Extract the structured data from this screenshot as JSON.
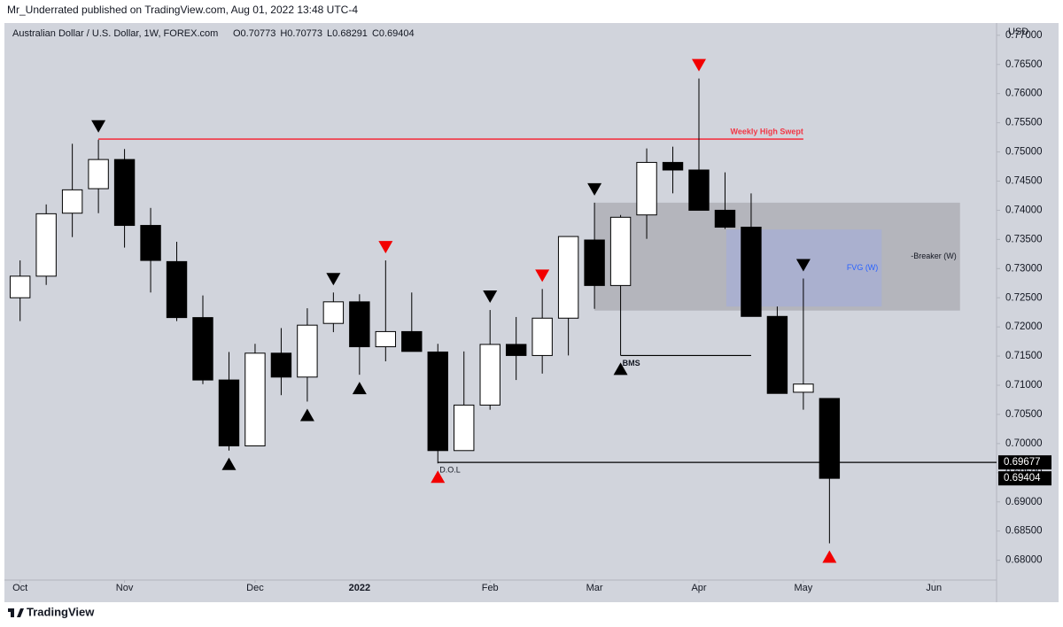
{
  "chart_data": {
    "type": "candlestick",
    "publisher": "Mr_Underrated published on TradingView.com, Aug 01, 2022 13:48 UTC-4",
    "title": "Australian Dollar / U.S. Dollar, 1W, FOREX.com",
    "ohlc_text": [
      "O0.70773",
      "H0.70773",
      "L0.68291",
      "C0.69404"
    ],
    "y_axis_label": "USD",
    "brand": "TradingView",
    "open": [
      0.725,
      0.7287,
      0.7395,
      0.7437,
      0.7487,
      0.7374,
      0.7312,
      0.7216,
      0.7109,
      0.6996,
      0.7155,
      0.7114,
      0.7206,
      0.7243,
      0.7166,
      0.7192,
      0.7157,
      0.6988,
      0.7066,
      0.717,
      0.7151,
      0.7215,
      0.7349,
      0.7271,
      0.7392,
      0.7482,
      0.7469,
      0.74,
      0.7371,
      0.7218,
      0.7088,
      0.70773
    ],
    "high": [
      0.7314,
      0.741,
      0.7514,
      0.7521,
      0.7505,
      0.7404,
      0.7346,
      0.7254,
      0.7157,
      0.7171,
      0.7198,
      0.7232,
      0.7259,
      0.7256,
      0.7314,
      0.7259,
      0.7171,
      0.7158,
      0.7229,
      0.7217,
      0.7265,
      0.7355,
      0.7413,
      0.7392,
      0.7506,
      0.7509,
      0.7626,
      0.7465,
      0.7429,
      0.7235,
      0.7283,
      0.70773
    ],
    "low": [
      0.721,
      0.7272,
      0.7354,
      0.7395,
      0.7336,
      0.7259,
      0.721,
      0.7102,
      0.6988,
      0.6996,
      0.7083,
      0.7072,
      0.7191,
      0.7118,
      0.7141,
      0.7158,
      0.6966,
      0.6988,
      0.7058,
      0.7109,
      0.712,
      0.7151,
      0.7231,
      0.7151,
      0.7351,
      0.7429,
      0.74,
      0.7368,
      0.7218,
      0.7086,
      0.7058,
      0.68291
    ],
    "close": [
      0.7287,
      0.7394,
      0.7435,
      0.7487,
      0.7374,
      0.7314,
      0.7216,
      0.7109,
      0.6996,
      0.7155,
      0.7114,
      0.7203,
      0.7243,
      0.7166,
      0.7192,
      0.7158,
      0.6988,
      0.7066,
      0.717,
      0.7151,
      0.7215,
      0.7355,
      0.7271,
      0.7388,
      0.7482,
      0.7469,
      0.74,
      0.7371,
      0.7218,
      0.7086,
      0.7102,
      0.69404
    ],
    "up_color": "#ffffff",
    "down_color": "#000000",
    "xlim": [
      -0.6,
      37.4
    ],
    "xticks": [
      {
        "value": 0,
        "label": "Oct"
      },
      {
        "value": 4,
        "label": "Nov"
      },
      {
        "value": 9,
        "label": "Dec"
      },
      {
        "value": 13,
        "label": "2022"
      },
      {
        "value": 18,
        "label": "Feb"
      },
      {
        "value": 22,
        "label": "Mar"
      },
      {
        "value": 26,
        "label": "Apr"
      },
      {
        "value": 30,
        "label": "May"
      },
      {
        "value": 35,
        "label": "Jun"
      }
    ],
    "ylim": [
      0.6766,
      0.7721
    ],
    "yticks": [
      {
        "value": 0.68,
        "label": "0.68000"
      },
      {
        "value": 0.685,
        "label": "0.68500"
      },
      {
        "value": 0.69,
        "label": "0.69000"
      },
      {
        "value": 0.695,
        "label": "0.69500"
      },
      {
        "value": 0.7,
        "label": "0.70000"
      },
      {
        "value": 0.705,
        "label": "0.70500"
      },
      {
        "value": 0.71,
        "label": "0.71000"
      },
      {
        "value": 0.715,
        "label": "0.71500"
      },
      {
        "value": 0.72,
        "label": "0.72000"
      },
      {
        "value": 0.725,
        "label": "0.72500"
      },
      {
        "value": 0.73,
        "label": "0.73000"
      },
      {
        "value": 0.735,
        "label": "0.73500"
      },
      {
        "value": 0.74,
        "label": "0.74000"
      },
      {
        "value": 0.745,
        "label": "0.74500"
      },
      {
        "value": 0.75,
        "label": "0.75000"
      },
      {
        "value": 0.755,
        "label": "0.75500"
      },
      {
        "value": 0.76,
        "label": "0.76000"
      },
      {
        "value": 0.765,
        "label": "0.76500"
      },
      {
        "value": 0.77,
        "label": "0.77000"
      }
    ],
    "levels": [
      {
        "label": "Weekly High Swept",
        "value": 0.7522,
        "from": 3,
        "to": 30,
        "color": "#f23645"
      },
      {
        "label": "BMS",
        "value": 0.7151,
        "from": 23,
        "to": 28,
        "color": "#000000"
      },
      {
        "label": "D.O.L",
        "value": 0.69677,
        "from": 16,
        "to": 37.4,
        "color": "#000000"
      }
    ],
    "zones": [
      {
        "label": "-Breaker (W)",
        "from": 22,
        "to": 36,
        "top": 0.7413,
        "bottom": 0.7228,
        "color": "#a9abb2"
      },
      {
        "label": "FVG (W)",
        "from": 27.05,
        "to": 33,
        "top": 0.7367,
        "bottom": 0.7235,
        "color": "#a7afd6"
      }
    ],
    "price_labels": [
      {
        "value": 0.69677,
        "label": "0.69677"
      },
      {
        "value": 0.69404,
        "label": "0.69404"
      }
    ],
    "markers": [
      {
        "index": 3,
        "side": "above",
        "color": "#000000"
      },
      {
        "index": 8,
        "side": "below",
        "color": "#000000"
      },
      {
        "index": 11,
        "side": "below",
        "color": "#000000"
      },
      {
        "index": 12,
        "side": "above",
        "color": "#000000"
      },
      {
        "index": 13,
        "side": "below",
        "color": "#000000"
      },
      {
        "index": 14,
        "side": "above",
        "color": "#f20000"
      },
      {
        "index": 16,
        "side": "below",
        "color": "#f20000"
      },
      {
        "index": 18,
        "side": "above",
        "color": "#000000"
      },
      {
        "index": 20,
        "side": "above",
        "color": "#f20000"
      },
      {
        "index": 22,
        "side": "above",
        "color": "#000000"
      },
      {
        "index": 23,
        "side": "below",
        "color": "#000000"
      },
      {
        "index": 26,
        "side": "above",
        "color": "#f20000"
      },
      {
        "index": 30,
        "side": "above",
        "color": "#000000"
      },
      {
        "index": 31,
        "side": "below",
        "color": "#f20000"
      }
    ]
  }
}
